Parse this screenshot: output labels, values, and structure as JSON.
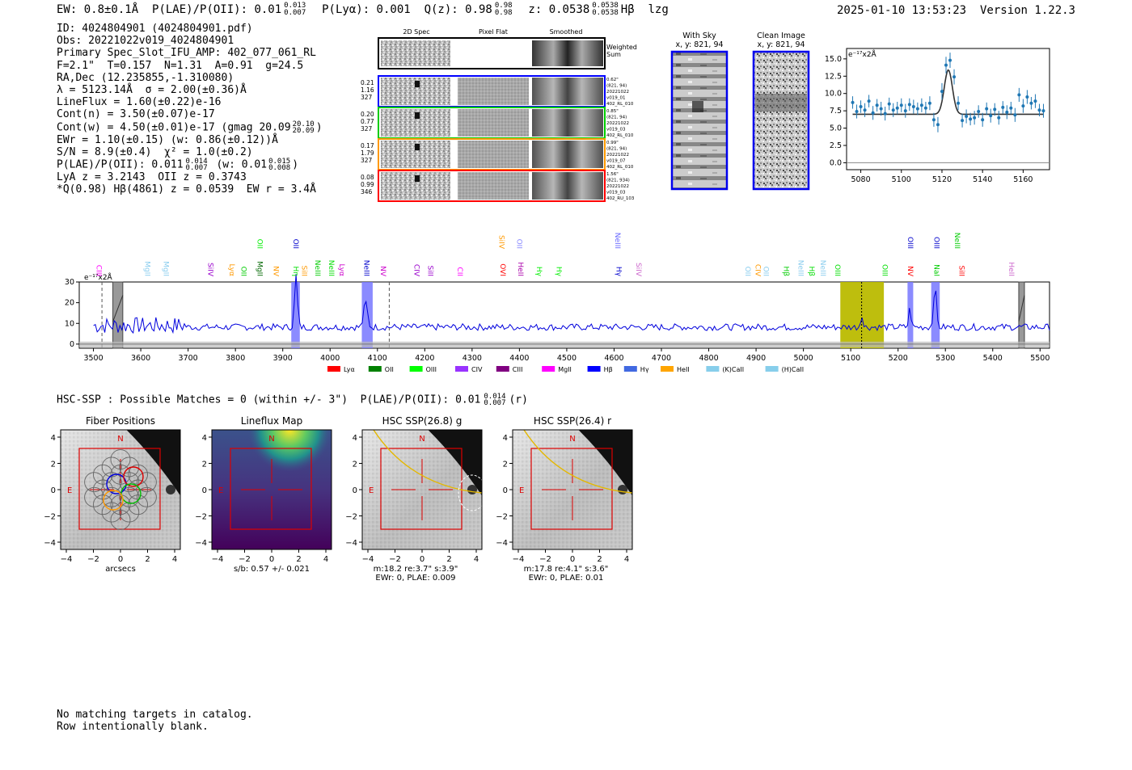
{
  "header": {
    "ew": "EW: 0.8±0.1Å",
    "plae": "P(LAE)/P(OII): 0.01",
    "plae_hi": "0.013",
    "plae_lo": "0.007",
    "plya": "P(Lyα): 0.001",
    "qz": "Q(z): 0.98",
    "qz_hi": "0.98",
    "qz_lo": "0.98",
    "z": "z: 0.0538",
    "z_hi": "0.0538",
    "z_lo": "0.0538",
    "line": "Hβ",
    "code": "lzg",
    "datetime": "2025-01-10 13:53:23",
    "version": "Version 1.22.3"
  },
  "info": {
    "id": "ID: 4024804901 (4024804901.pdf)",
    "obs": "Obs: 20221022v019_4024804901",
    "primary": "Primary Spec_Slot_IFU_AMP: 402_077_061_RL",
    "fit": "F=2.1\"  T=0.157  N=1.31  A=0.91  g=24.5",
    "radec": "RA,Dec (12.235855,-1.310080)",
    "lambda": "λ = 5123.14Å  σ = 2.00(±0.36)Å",
    "lineflux": "LineFlux = 1.60(±0.22)e-16",
    "contn": "Cont(n) = 3.50(±0.07)e-17",
    "contw": "Cont(w) = 4.50(±0.01)e-17 (gmag 20.09",
    "contw_hi": "20.10",
    "contw_lo": "20.09",
    "contw_end": ")",
    "ewr": "EWr = 1.10(±0.15) (w: 0.86(±0.12))Å",
    "sn": "S/N = 8.9(±0.4)  χ² = 1.0(±0.2)",
    "plae": "P(LAE)/P(OII): 0.011",
    "plae_hi": "0.014",
    "plae_lo": "0.007",
    "plae_w": "(w: 0.01",
    "plae_w_hi": "0.015",
    "plae_w_lo": "0.008",
    "plae_end": ")",
    "lya": "LyA z = 3.2143  OII z = 0.3743",
    "hb": "*Q(0.98) Hβ(4861) z = 0.0539  EW r = 3.4Å"
  },
  "spec2d": {
    "col_titles": [
      "2D Spec",
      "Pixel Flat",
      "Smoothed"
    ],
    "sum_label": [
      "Weighted",
      "Sum"
    ],
    "rows": [
      {
        "color": "#0000ff",
        "left": [
          "0.21",
          "1.16",
          "327"
        ],
        "right": [
          "0.62\"",
          "(821, 94)",
          "20221022",
          "v019_01",
          "402_RL_010"
        ]
      },
      {
        "color": "#00cc00",
        "left": [
          "0.20",
          "0.77",
          "327"
        ],
        "right": [
          "0.85\"",
          "(821, 94)",
          "20221022",
          "v019_03",
          "402_RL_010"
        ]
      },
      {
        "color": "#ff9900",
        "left": [
          "0.17",
          "1.79",
          "327"
        ],
        "right": [
          "0.99\"",
          "(821, 94)",
          "20221022",
          "v019_07",
          "402_RL_010"
        ]
      },
      {
        "color": "#ff0000",
        "left": [
          "0.08",
          "0.99",
          "346"
        ],
        "right": [
          "1.56\"",
          "(821, 934)",
          "20221022",
          "v019_03",
          "402_RU_103"
        ]
      }
    ]
  },
  "cutouts": {
    "with_sky": {
      "title": "With Sky",
      "sub": "x, y: 821, 94"
    },
    "clean": {
      "title": "Clean Image",
      "sub": "x, y: 821, 94"
    }
  },
  "line_fit": {
    "type": "scatter",
    "unit": "e⁻¹⁷x2Å",
    "x_ticks": [
      5080,
      5100,
      5120,
      5140,
      5160
    ],
    "y_ticks": [
      "0.0",
      "2.5",
      "5.0",
      "7.5",
      "10.0",
      "12.5",
      "15.0"
    ],
    "xlim": [
      5073,
      5173
    ],
    "ylim": [
      -1,
      16.5
    ],
    "gauss": {
      "mu": 5123.14,
      "sigma": 2.0,
      "amp": 6.4,
      "base": 7.0
    },
    "points_x": [
      5076,
      5078,
      5080,
      5082,
      5084,
      5086,
      5088,
      5090,
      5092,
      5094,
      5096,
      5098,
      5100,
      5102,
      5104,
      5106,
      5108,
      5110,
      5112,
      5114,
      5116,
      5118,
      5120,
      5122,
      5124,
      5126,
      5128,
      5130,
      5132,
      5134,
      5136,
      5138,
      5140,
      5142,
      5144,
      5146,
      5148,
      5150,
      5152,
      5154,
      5156,
      5158,
      5160,
      5162,
      5164,
      5166,
      5168,
      5170
    ],
    "points_y": [
      8.7,
      7.4,
      8.1,
      7.6,
      8.9,
      7.2,
      8.3,
      7.8,
      7.1,
      8.5,
      7.6,
      7.9,
      8.3,
      7.5,
      8.4,
      8.1,
      7.8,
      8.3,
      7.9,
      8.6,
      6.2,
      5.5,
      10.3,
      14.1,
      14.8,
      12.4,
      8.6,
      6.1,
      6.7,
      6.3,
      6.5,
      7.4,
      6.2,
      7.8,
      6.8,
      7.7,
      6.5,
      8.0,
      7.3,
      7.9,
      6.9,
      9.8,
      8.2,
      9.5,
      8.6,
      8.9,
      7.6,
      7.5
    ],
    "points_err": [
      0.9,
      1.0,
      0.9,
      1.0,
      0.9,
      1.0,
      0.9,
      1.0,
      1.0,
      0.9,
      1.0,
      0.9,
      1.0,
      1.0,
      0.9,
      1.0,
      0.9,
      1.0,
      0.9,
      1.0,
      1.0,
      1.1,
      1.2,
      1.2,
      1.1,
      1.1,
      1.0,
      1.0,
      1.0,
      0.9,
      1.0,
      0.9,
      1.0,
      0.9,
      1.0,
      0.9,
      1.0,
      0.9,
      1.0,
      0.9,
      1.0,
      1.0,
      1.0,
      1.0,
      0.9,
      1.0,
      0.9,
      1.0
    ]
  },
  "full_spectrum": {
    "type": "line",
    "unit": "e⁻¹⁷x2Å",
    "xlim": [
      3470,
      5520
    ],
    "ylim": [
      -2,
      30
    ],
    "x_ticks": [
      3500,
      3600,
      3700,
      3800,
      3900,
      4000,
      4100,
      4200,
      4300,
      4400,
      4500,
      4600,
      4700,
      4800,
      4900,
      5000,
      5100,
      5200,
      5300,
      5400,
      5500
    ],
    "y_ticks": [
      0,
      10,
      20,
      30
    ],
    "emission_peaks": [
      {
        "x": 3928,
        "amp": 25,
        "w": 3
      },
      {
        "x": 4075,
        "amp": 12,
        "w": 4
      },
      {
        "x": 5123,
        "amp": 7,
        "w": 2
      },
      {
        "x": 5225,
        "amp": 9,
        "w": 2.5
      },
      {
        "x": 5278,
        "amp": 20,
        "w": 3
      }
    ],
    "highlight_bands": [
      {
        "x0": 3918,
        "x1": 3936,
        "color": "#7777ff"
      },
      {
        "x0": 4067,
        "x1": 4090,
        "color": "#7777ff"
      },
      {
        "x0": 5220,
        "x1": 5232,
        "color": "#7777ff"
      },
      {
        "x0": 5270,
        "x1": 5288,
        "color": "#7777ff"
      },
      {
        "x0": 5078,
        "x1": 5170,
        "color": "#bbbb00"
      }
    ],
    "gray_bands": [
      {
        "x0": 3541,
        "x1": 3562
      },
      {
        "x0": 5455,
        "x1": 5467
      }
    ],
    "dashed_lines": [
      3518,
      4125
    ],
    "line_labels": [
      {
        "t": "CIII",
        "x": 3512,
        "c": "#ff00ff",
        "r": 0
      },
      {
        "t": "MgII",
        "x": 3614,
        "c": "#88ccee",
        "r": 0
      },
      {
        "t": "MgII",
        "x": 3654,
        "c": "#88ccee",
        "r": 0
      },
      {
        "t": "SiIV",
        "x": 3748,
        "c": "#9900cc",
        "r": 0
      },
      {
        "t": "Lyα",
        "x": 3793,
        "c": "#ff9900",
        "r": 0
      },
      {
        "t": "OII",
        "x": 3818,
        "c": "#00cc00",
        "r": 0
      },
      {
        "t": "MgII",
        "x": 3852,
        "c": "#006600",
        "r": 0
      },
      {
        "t": "OII",
        "x": 3852,
        "c": "#00ee00",
        "r": 1
      },
      {
        "t": "NV",
        "x": 3886,
        "c": "#ff9900",
        "r": 0
      },
      {
        "t": "Hη",
        "x": 3928,
        "c": "#00dd00",
        "r": 0
      },
      {
        "t": "OII",
        "x": 3928,
        "c": "#0000cc",
        "r": 1
      },
      {
        "t": "SiII",
        "x": 3946,
        "c": "#ff9900",
        "r": 0
      },
      {
        "t": "NeIII",
        "x": 3974,
        "c": "#00cc00",
        "r": 0
      },
      {
        "t": "NeIII",
        "x": 4003,
        "c": "#00dd00",
        "r": 0
      },
      {
        "t": "Lyα",
        "x": 4025,
        "c": "#cc00cc",
        "r": 0
      },
      {
        "t": "NeIII",
        "x": 4077,
        "c": "#0000cc",
        "r": 0
      },
      {
        "t": "NV",
        "x": 4112,
        "c": "#cc00cc",
        "r": 0
      },
      {
        "t": "CIV",
        "x": 4183,
        "c": "#9900cc",
        "r": 0
      },
      {
        "t": "SiII",
        "x": 4212,
        "c": "#9900cc",
        "r": 0
      },
      {
        "t": "CII",
        "x": 4275,
        "c": "#ff00ff",
        "r": 0
      },
      {
        "t": "SiIV",
        "x": 4363,
        "c": "#ff9900",
        "r": 1
      },
      {
        "t": "OVI",
        "x": 4365,
        "c": "#ff0000",
        "r": 0
      },
      {
        "t": "OII",
        "x": 4400,
        "c": "#8888ff",
        "r": 1
      },
      {
        "t": "HeII",
        "x": 4403,
        "c": "#aa00aa",
        "r": 0
      },
      {
        "t": "Hγ",
        "x": 4442,
        "c": "#00ee00",
        "r": 0
      },
      {
        "t": "Hγ",
        "x": 4484,
        "c": "#00ee00",
        "r": 0
      },
      {
        "t": "NeIII",
        "x": 4608,
        "c": "#6666ff",
        "r": 1
      },
      {
        "t": "Hγ",
        "x": 4610,
        "c": "#0000cc",
        "r": 0
      },
      {
        "t": "SiIV",
        "x": 4652,
        "c": "#cc66cc",
        "r": 0
      },
      {
        "t": "OII",
        "x": 4883,
        "c": "#88ccee",
        "r": 0
      },
      {
        "t": "CIV",
        "x": 4904,
        "c": "#ff9900",
        "r": 0
      },
      {
        "t": "OII",
        "x": 4921,
        "c": "#88ccee",
        "r": 0
      },
      {
        "t": "Hβ",
        "x": 4964,
        "c": "#00cc00",
        "r": 0
      },
      {
        "t": "NeIII",
        "x": 4995,
        "c": "#88ccee",
        "r": 0
      },
      {
        "t": "Hβ",
        "x": 5018,
        "c": "#00dd00",
        "r": 0
      },
      {
        "t": "NeIII",
        "x": 5042,
        "c": "#88ccee",
        "r": 0
      },
      {
        "t": "OIII",
        "x": 5072,
        "c": "#00dd00",
        "r": 0
      },
      {
        "t": "OIII",
        "x": 5172,
        "c": "#00dd00",
        "r": 0
      },
      {
        "t": "NV",
        "x": 5226,
        "c": "#ff0000",
        "r": 0
      },
      {
        "t": "OIII",
        "x": 5226,
        "c": "#0000cc",
        "r": 1
      },
      {
        "t": "NaI",
        "x": 5282,
        "c": "#00cc00",
        "r": 0
      },
      {
        "t": "OIII",
        "x": 5282,
        "c": "#0000cc",
        "r": 1
      },
      {
        "t": "NeIII",
        "x": 5325,
        "c": "#00cc00",
        "r": 1
      },
      {
        "t": "SiII",
        "x": 5335,
        "c": "#ff0000",
        "r": 0
      },
      {
        "t": "HeII",
        "x": 5440,
        "c": "#cc66cc",
        "r": 0
      }
    ],
    "legend": [
      {
        "name": "Lyα",
        "color": "#ff0000"
      },
      {
        "name": "OII",
        "color": "#008000"
      },
      {
        "name": "OIII",
        "color": "#00ff00"
      },
      {
        "name": "CIV",
        "color": "#9933ff"
      },
      {
        "name": "CIII",
        "color": "#800080"
      },
      {
        "name": "MgII",
        "color": "#ff00ff"
      },
      {
        "name": "Hβ",
        "color": "#0000ff"
      },
      {
        "name": "Hγ",
        "color": "#4169e1"
      },
      {
        "name": "HeII",
        "color": "#ffa500"
      },
      {
        "name": "(K)CaII",
        "color": "#87ceeb"
      },
      {
        "name": "(H)CaII",
        "color": "#87ceeb"
      }
    ]
  },
  "hsc": {
    "title": "HSC-SSP : Possible Matches = 0 (within +/- 3\")  P(LAE)/P(OII): 0.01",
    "title_hi": "0.014",
    "title_lo": "0.007",
    "title_end": "(r)",
    "ticks": [
      "−4",
      "−2",
      "0",
      "2",
      "4"
    ],
    "y_ticks": [
      "4",
      "2",
      "0",
      "−2",
      "−4"
    ],
    "panels": [
      {
        "title": "Fiber Positions",
        "caption": [
          "arcsecs"
        ]
      },
      {
        "title": "Lineflux Map",
        "caption": [
          "s/b: 0.57 +/- 0.021"
        ]
      },
      {
        "title": "HSC SSP(26.8) g",
        "caption": [
          "m:18.2  re:3.7\"  s:3.9\"",
          "EWr: 0, PLAE: 0.009"
        ]
      },
      {
        "title": "HSC SSP(26.4) r",
        "caption": [
          "m:17.8  re:4.1\"  s:3.6\"",
          "EWr: 0, PLAE: 0.01"
        ]
      }
    ],
    "north": "N",
    "east": "E"
  },
  "notes": [
    "No matching targets in catalog.",
    "Row intentionally blank."
  ]
}
